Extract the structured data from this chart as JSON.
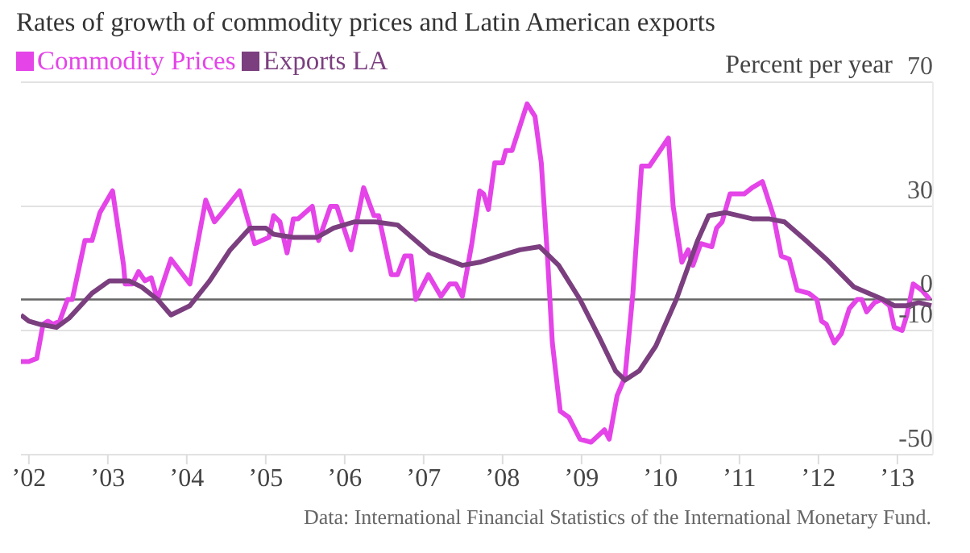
{
  "chart_data": {
    "type": "line",
    "title": "Rates of growth of commodity prices and Latin American exports",
    "ylabel": "Percent per year",
    "annotations": [
      "Data: International Financial Statistics of the International Monetary Fund."
    ],
    "xlim": [
      2001.9,
      2013.45
    ],
    "xticks": [
      {
        "value": 2002,
        "label": "’02"
      },
      {
        "value": 2003,
        "label": "’03"
      },
      {
        "value": 2004,
        "label": "’04"
      },
      {
        "value": 2005,
        "label": "’05"
      },
      {
        "value": 2006,
        "label": "’06"
      },
      {
        "value": 2007,
        "label": "’07"
      },
      {
        "value": 2008,
        "label": "’08"
      },
      {
        "value": 2009,
        "label": "’09"
      },
      {
        "value": 2010,
        "label": "’10"
      },
      {
        "value": 2011,
        "label": "’11"
      },
      {
        "value": 2012,
        "label": "’12"
      },
      {
        "value": 2013,
        "label": "’13"
      }
    ],
    "ylim": [
      -50,
      70
    ],
    "yticks": [
      70,
      30,
      0,
      -10,
      -50
    ],
    "grid": "y",
    "legend": "top left",
    "marker": "none",
    "line_style": "solid",
    "ref_lines": [
      {
        "axis": "y",
        "value": 0,
        "color": "#666666"
      }
    ],
    "series": [
      {
        "name": "Commodity Prices",
        "color": "#e444e8",
        "x": [
          2001.9,
          2002.0,
          2002.1,
          2002.18,
          2002.24,
          2002.31,
          2002.39,
          2002.49,
          2002.55,
          2002.71,
          2002.8,
          2002.9,
          2003.06,
          2003.2,
          2003.22,
          2003.31,
          2003.39,
          2003.47,
          2003.55,
          2003.63,
          2003.8,
          2004.04,
          2004.24,
          2004.35,
          2004.45,
          2004.67,
          2004.86,
          2005.04,
          2005.1,
          2005.18,
          2005.27,
          2005.35,
          2005.41,
          2005.59,
          2005.67,
          2005.82,
          2005.9,
          2006.08,
          2006.24,
          2006.37,
          2006.43,
          2006.59,
          2006.67,
          2006.76,
          2006.84,
          2006.9,
          2007.06,
          2007.22,
          2007.33,
          2007.41,
          2007.49,
          2007.61,
          2007.71,
          2007.76,
          2007.82,
          2007.9,
          2008.0,
          2008.04,
          2008.12,
          2008.31,
          2008.41,
          2008.49,
          2008.57,
          2008.63,
          2008.73,
          2008.84,
          2008.98,
          2009.12,
          2009.29,
          2009.35,
          2009.45,
          2009.55,
          2009.65,
          2009.76,
          2009.86,
          2010.1,
          2010.16,
          2010.27,
          2010.35,
          2010.41,
          2010.51,
          2010.65,
          2010.71,
          2010.78,
          2010.88,
          2011.06,
          2011.16,
          2011.29,
          2011.43,
          2011.53,
          2011.63,
          2011.73,
          2011.88,
          2011.98,
          2012.04,
          2012.1,
          2012.2,
          2012.29,
          2012.39,
          2012.49,
          2012.55,
          2012.61,
          2012.71,
          2012.8,
          2012.9,
          2012.96,
          2013.06,
          2013.12,
          2013.2,
          2013.31,
          2013.41
        ],
        "values": [
          -20,
          -20,
          -19,
          -8,
          -7,
          -8,
          -7,
          0,
          0,
          19,
          19,
          28,
          35,
          11,
          5,
          5,
          9,
          6,
          7,
          0,
          13,
          5,
          32,
          25,
          28,
          35,
          18,
          20,
          27,
          25,
          15,
          26,
          26,
          30,
          19,
          30,
          30,
          16,
          36,
          27,
          27,
          8,
          8,
          14,
          14,
          0,
          8,
          1,
          5,
          5,
          1,
          18,
          35,
          34,
          29,
          44,
          44,
          48,
          48,
          63,
          59,
          44,
          13,
          -14,
          -36,
          -38,
          -45,
          -46,
          -42,
          -45,
          -31,
          -25,
          2,
          43,
          43,
          52,
          30,
          12,
          16,
          11,
          18,
          17,
          23,
          25,
          34,
          34,
          36,
          38,
          27,
          14,
          13,
          3,
          2,
          0,
          -7,
          -8,
          -14,
          -11,
          -3,
          0,
          0,
          -4,
          -1,
          0,
          -2,
          -9,
          -10,
          -5,
          5,
          3,
          0
        ]
      },
      {
        "name": "Exports LA",
        "color": "#7b3f7f",
        "x": [
          2001.9,
          2002.0,
          2002.14,
          2002.35,
          2002.51,
          2002.8,
          2003.02,
          2003.27,
          2003.43,
          2003.63,
          2003.8,
          2004.04,
          2004.29,
          2004.55,
          2004.8,
          2005.0,
          2005.1,
          2005.35,
          2005.65,
          2005.86,
          2006.12,
          2006.39,
          2006.67,
          2007.08,
          2007.49,
          2007.71,
          2007.96,
          2008.22,
          2008.47,
          2008.71,
          2008.98,
          2009.22,
          2009.43,
          2009.55,
          2009.73,
          2009.94,
          2010.2,
          2010.47,
          2010.61,
          2010.82,
          2011.16,
          2011.37,
          2011.57,
          2011.84,
          2012.1,
          2012.45,
          2012.82,
          2012.96,
          2013.12,
          2013.27,
          2013.43
        ],
        "values": [
          -5,
          -7,
          -8,
          -9,
          -6,
          2,
          6,
          6,
          4,
          0,
          -5,
          -2,
          6,
          16,
          23,
          23,
          21,
          20,
          20,
          23,
          25,
          25,
          24,
          15,
          11,
          12,
          14,
          16,
          17,
          11,
          0,
          -12,
          -23,
          -26,
          -23,
          -15,
          0,
          19,
          27,
          28,
          26,
          26,
          25,
          19,
          13,
          4,
          0,
          -2,
          -2,
          -1,
          -2
        ]
      }
    ]
  }
}
